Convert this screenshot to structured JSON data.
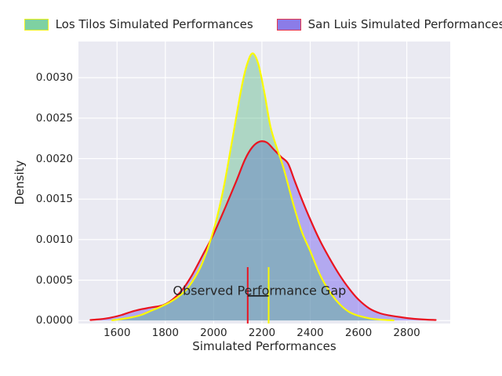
{
  "figure": {
    "background": "#ffffff",
    "plot_background": "#eaeaf2",
    "grid_color": "#ffffff",
    "text_color": "#262626"
  },
  "legend": {
    "items": [
      {
        "label": "Los Tilos Simulated Performances",
        "swatch_fill": "#7ed1a2",
        "swatch_border": "#f2f21e"
      },
      {
        "label": "San Luis Simulated Performances",
        "swatch_fill": "#8b7ce8",
        "swatch_border": "#e8364a"
      }
    ]
  },
  "chart_data": {
    "type": "area",
    "subtype": "kde-density",
    "title": "",
    "xlabel": "Simulated Performances",
    "ylabel": "Density",
    "xlim": [
      1440,
      2980
    ],
    "ylim": [
      -3.6e-05,
      0.003446
    ],
    "grid": true,
    "legend_position": "top-center",
    "x_ticks": [
      1600,
      1800,
      2000,
      2200,
      2400,
      2600,
      2800
    ],
    "x_tick_labels": [
      "1600",
      "1800",
      "2000",
      "2200",
      "2400",
      "2600",
      "2800"
    ],
    "y_ticks": [
      0,
      0.0005,
      0.001,
      0.0015,
      0.002,
      0.0025,
      0.003
    ],
    "y_tick_labels": [
      "0.0000",
      "0.0005",
      "0.0010",
      "0.0015",
      "0.0020",
      "0.0025",
      "0.0030"
    ],
    "series": [
      {
        "id": "los-tilos",
        "name": "Los Tilos Simulated Performances",
        "line_color": "#fafa00",
        "fill_color": "rgba(60,179,113,0.35)",
        "peak": {
          "x": 2162,
          "density": 0.0033
        },
        "points": [
          [
            1580,
            5e-06
          ],
          [
            1620,
            2e-05
          ],
          [
            1660,
            4e-05
          ],
          [
            1700,
            7e-05
          ],
          [
            1740,
            0.00012
          ],
          [
            1780,
            0.00017
          ],
          [
            1820,
            0.00023
          ],
          [
            1860,
            0.00031
          ],
          [
            1900,
            0.00043
          ],
          [
            1950,
            0.00069
          ],
          [
            2000,
            0.00112
          ],
          [
            2040,
            0.00162
          ],
          [
            2080,
            0.00228
          ],
          [
            2115,
            0.00287
          ],
          [
            2140,
            0.00318
          ],
          [
            2162,
            0.0033
          ],
          [
            2185,
            0.00317
          ],
          [
            2210,
            0.00282
          ],
          [
            2235,
            0.0024
          ],
          [
            2262,
            0.00213
          ],
          [
            2290,
            0.00188
          ],
          [
            2330,
            0.00144
          ],
          [
            2365,
            0.0011
          ],
          [
            2400,
            0.00086
          ],
          [
            2440,
            0.00057
          ],
          [
            2480,
            0.00036
          ],
          [
            2520,
            0.00021
          ],
          [
            2560,
            0.00011
          ],
          [
            2600,
            6e-05
          ],
          [
            2650,
            2.5e-05
          ],
          [
            2700,
            1e-05
          ],
          [
            2745,
            4e-06
          ]
        ]
      },
      {
        "id": "san-luis",
        "name": "San Luis Simulated Performances",
        "line_color": "#ea1420",
        "fill_color": "rgba(123,104,238,0.5)",
        "peak": {
          "x": 2190,
          "density": 0.00221
        },
        "points": [
          [
            1490,
            8e-06
          ],
          [
            1540,
            2e-05
          ],
          [
            1580,
            4e-05
          ],
          [
            1620,
            7e-05
          ],
          [
            1660,
            0.00011
          ],
          [
            1700,
            0.00014
          ],
          [
            1745,
            0.000165
          ],
          [
            1790,
            0.00019
          ],
          [
            1830,
            0.00026
          ],
          [
            1870,
            0.00038
          ],
          [
            1910,
            0.00056
          ],
          [
            1955,
            0.00081
          ],
          [
            2000,
            0.00107
          ],
          [
            2050,
            0.00141
          ],
          [
            2095,
            0.00173
          ],
          [
            2130,
            0.00199
          ],
          [
            2160,
            0.00214
          ],
          [
            2190,
            0.00221
          ],
          [
            2220,
            0.0022
          ],
          [
            2250,
            0.00211
          ],
          [
            2280,
            0.00202
          ],
          [
            2308,
            0.00194
          ],
          [
            2335,
            0.00173
          ],
          [
            2365,
            0.0015
          ],
          [
            2400,
            0.00125
          ],
          [
            2440,
            0.00099
          ],
          [
            2480,
            0.00077
          ],
          [
            2520,
            0.00057
          ],
          [
            2560,
            0.0004
          ],
          [
            2600,
            0.00026
          ],
          [
            2645,
            0.00015
          ],
          [
            2690,
            9e-05
          ],
          [
            2735,
            6e-05
          ],
          [
            2780,
            4e-05
          ],
          [
            2830,
            2.2e-05
          ],
          [
            2880,
            1.2e-05
          ],
          [
            2920,
            8e-06
          ]
        ]
      }
    ],
    "vlines": [
      {
        "x": 2141,
        "y_top": 0.00066,
        "color": "#ea1420"
      },
      {
        "x": 2228,
        "y_top": 0.00066,
        "color": "#fafa00"
      }
    ],
    "annotation": {
      "text": "Observed Performance Gap",
      "x": 2190,
      "y": 0.00037,
      "line": {
        "x1": 2141,
        "x2": 2228,
        "y": 0.000305,
        "color": "#111111"
      }
    }
  }
}
